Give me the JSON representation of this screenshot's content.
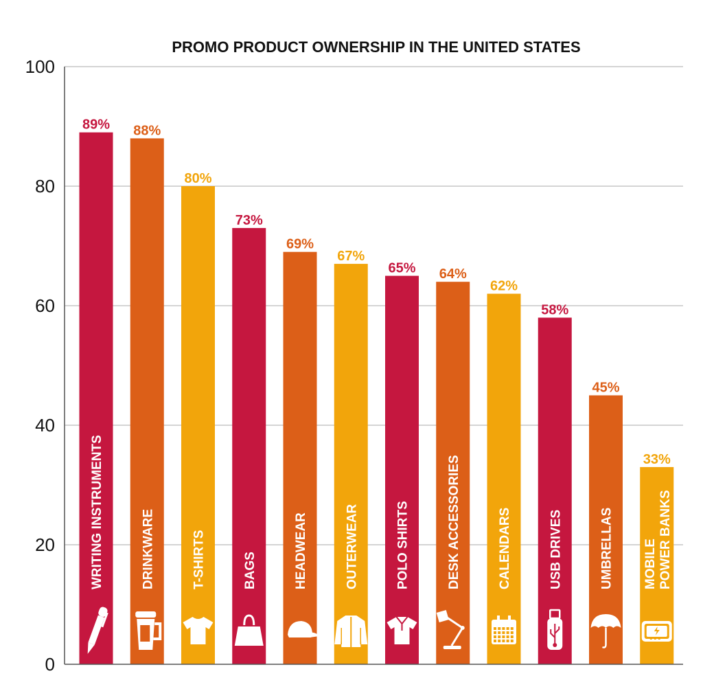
{
  "chart_data": {
    "type": "bar",
    "title": "PROMO PRODUCT OWNERSHIP IN THE UNITED STATES",
    "xlabel": "",
    "ylabel": "",
    "ylim": [
      0,
      100
    ],
    "yticks": [
      0,
      20,
      40,
      60,
      80,
      100
    ],
    "grid": true,
    "categories": [
      {
        "lines": [
          "WRITING INSTRUMENTS"
        ],
        "icon": "pen-icon"
      },
      {
        "lines": [
          "DRINKWARE"
        ],
        "icon": "travel-mug-icon"
      },
      {
        "lines": [
          "T-SHIRTS"
        ],
        "icon": "t-shirt-icon"
      },
      {
        "lines": [
          "BAGS"
        ],
        "icon": "bag-icon"
      },
      {
        "lines": [
          "HEADWEAR"
        ],
        "icon": "cap-icon"
      },
      {
        "lines": [
          "OUTERWEAR"
        ],
        "icon": "jacket-icon"
      },
      {
        "lines": [
          "POLO SHIRTS"
        ],
        "icon": "polo-shirt-icon"
      },
      {
        "lines": [
          "DESK ACCESSORIES"
        ],
        "icon": "desk-lamp-icon"
      },
      {
        "lines": [
          "CALENDARS"
        ],
        "icon": "calendar-icon"
      },
      {
        "lines": [
          "USB DRIVES"
        ],
        "icon": "usb-drive-icon"
      },
      {
        "lines": [
          "UMBRELLAS"
        ],
        "icon": "umbrella-icon"
      },
      {
        "lines": [
          "MOBILE",
          "POWER BANKS"
        ],
        "icon": "power-bank-icon"
      }
    ],
    "values": [
      89,
      88,
      80,
      73,
      69,
      67,
      65,
      64,
      62,
      58,
      45,
      33
    ],
    "value_labels": [
      "89%",
      "88%",
      "80%",
      "73%",
      "69%",
      "67%",
      "65%",
      "64%",
      "62%",
      "58%",
      "45%",
      "33%"
    ],
    "bar_colors": [
      "#C5173F",
      "#DC5F18",
      "#F2A50B",
      "#C5173F",
      "#DC5F18",
      "#F2A50B",
      "#C5173F",
      "#DC5F18",
      "#F2A50B",
      "#C5173F",
      "#DC5F18",
      "#F2A50B"
    ]
  }
}
